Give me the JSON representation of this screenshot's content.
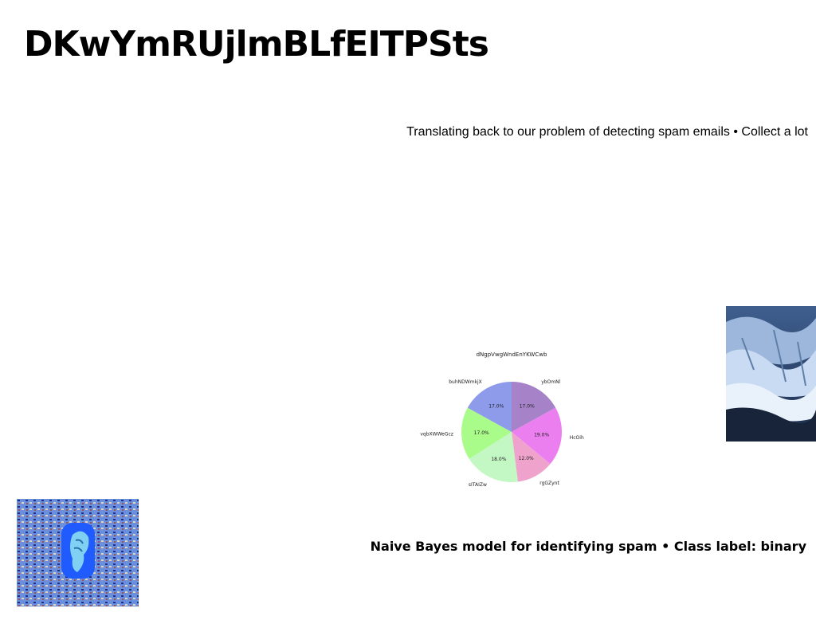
{
  "slide": {
    "title": "DKwYmRUjlmBLfEITPSts",
    "subtitle": "Translating back to our problem of detecting spam emails • Collect a lot",
    "caption": "Naive Bayes model for identifying spam • Class label: binary"
  },
  "images": {
    "right": "glacier-photo",
    "left": "patterned-thumb-photo"
  },
  "chart_data": {
    "type": "pie",
    "title": "dNgpVwgWndEnYKWCwb",
    "slices": [
      {
        "label": "ybOmNl",
        "value": 17.0,
        "pct_label": "17.0%",
        "color": "#a683c9"
      },
      {
        "label": "HcOih",
        "value": 19.0,
        "pct_label": "19.0%",
        "color": "#eb7ff0"
      },
      {
        "label": "rgGZynt",
        "value": 12.0,
        "pct_label": "12.0%",
        "color": "#efa3cc"
      },
      {
        "label": "sITAIZw",
        "value": 18.0,
        "pct_label": "18.0%",
        "color": "#c3f8c4"
      },
      {
        "label": "vqbXWWeGcz",
        "value": 17.0,
        "pct_label": "17.0%",
        "color": "#a9fb8a"
      },
      {
        "label": "buhNDWmkjX",
        "value": 17.0,
        "pct_label": "17.0%",
        "color": "#8e9aea"
      }
    ]
  }
}
